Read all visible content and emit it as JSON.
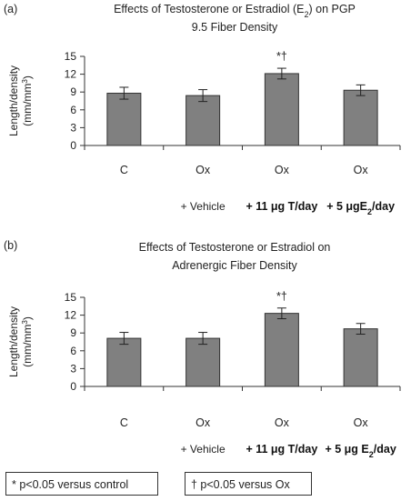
{
  "chart_data": [
    {
      "type": "bar",
      "panel": "(a)",
      "title_line1": "Effects of Testosterone or Estradiol (E",
      "title_line1_sub": "2",
      "title_line1_end": ") on PGP",
      "title_line2": "9.5 Fiber Density",
      "ylabel_line1": "Length/density",
      "ylabel_line2": "(mm/mm",
      "ylabel_sup": "3",
      "ylabel_end": ")",
      "ylim": [
        0,
        15
      ],
      "yticks": [
        "0",
        "3",
        "6",
        "9",
        "12",
        "15"
      ],
      "categories": [
        "C",
        "Ox",
        "Ox",
        "Ox"
      ],
      "subcategories": [
        {
          "text": "",
          "bold": false
        },
        {
          "text": "+ Vehicle",
          "bold": false
        },
        {
          "text": "+ 11 μg T/day",
          "bold": true
        },
        {
          "text": "+ 5 μgE",
          "sub": "2",
          "end": "/day",
          "bold": true
        }
      ],
      "values": [
        8.8,
        8.4,
        12.1,
        9.3
      ],
      "errors": [
        1.0,
        1.0,
        0.9,
        0.9
      ],
      "annotations": [
        "",
        "",
        "*†",
        ""
      ],
      "bar_color": "#808080"
    },
    {
      "type": "bar",
      "panel": "(b)",
      "title_line1": "Effects of Testosterone or Estradiol on",
      "title_line2": "Adrenergic Fiber Density",
      "ylabel_line1": "Length/density",
      "ylabel_line2": "(mm/mm",
      "ylabel_sup": "3",
      "ylabel_end": ")",
      "ylim": [
        0,
        15
      ],
      "yticks": [
        "0",
        "3",
        "6",
        "9",
        "12",
        "15"
      ],
      "categories": [
        "C",
        "Ox",
        "Ox",
        "Ox"
      ],
      "subcategories": [
        {
          "text": "",
          "bold": false
        },
        {
          "text": "+ Vehicle",
          "bold": false
        },
        {
          "text": "+ 11 μg T/day",
          "bold": true
        },
        {
          "text": "+ 5 μg E",
          "sub": "2",
          "end": "/day",
          "bold": true
        }
      ],
      "values": [
        8.1,
        8.1,
        12.3,
        9.7
      ],
      "errors": [
        1.0,
        1.0,
        0.9,
        0.9
      ],
      "annotations": [
        "",
        "",
        "*†",
        ""
      ],
      "bar_color": "#808080"
    }
  ],
  "legend": {
    "item1": "* p<0.05 versus control",
    "item2": "† p<0.05 versus Ox"
  }
}
